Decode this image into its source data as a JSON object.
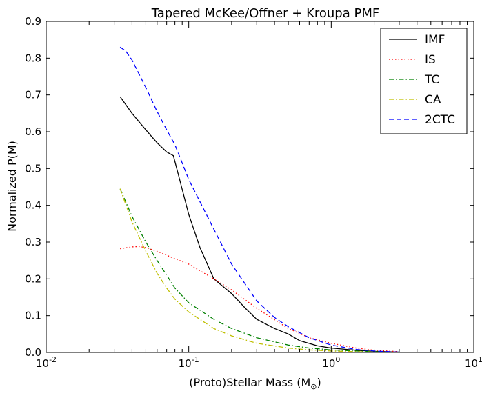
{
  "chart_data": {
    "type": "line",
    "title": "Tapered McKee/Offner + Kroupa PMF",
    "xlabel_main": "(Proto)Stellar Mass (M",
    "xlabel_sub": "⊙",
    "xlabel_close": ")",
    "ylabel": "Normalized P(M)",
    "xscale": "log",
    "xlim": [
      0.01,
      10
    ],
    "ylim": [
      0.0,
      0.9
    ],
    "xticks": [
      {
        "value": 0.01,
        "base": "10",
        "exp": "-2"
      },
      {
        "value": 0.1,
        "base": "10",
        "exp": "-1"
      },
      {
        "value": 1,
        "base": "10",
        "exp": "0"
      },
      {
        "value": 10,
        "base": "10",
        "exp": "1"
      }
    ],
    "yticks": [
      {
        "value": 0.0,
        "label": "0.0"
      },
      {
        "value": 0.1,
        "label": "0.1"
      },
      {
        "value": 0.2,
        "label": "0.2"
      },
      {
        "value": 0.3,
        "label": "0.3"
      },
      {
        "value": 0.4,
        "label": "0.4"
      },
      {
        "value": 0.5,
        "label": "0.5"
      },
      {
        "value": 0.6,
        "label": "0.6"
      },
      {
        "value": 0.7,
        "label": "0.7"
      },
      {
        "value": 0.8,
        "label": "0.8"
      },
      {
        "value": 0.9,
        "label": "0.9"
      }
    ],
    "grid": false,
    "legend_position": "top-right",
    "series": [
      {
        "name": "IMF",
        "color": "#000000",
        "dash": "solid",
        "x": [
          0.033,
          0.04,
          0.05,
          0.06,
          0.07,
          0.078,
          0.085,
          0.1,
          0.12,
          0.15,
          0.2,
          0.25,
          0.3,
          0.4,
          0.5,
          0.6,
          0.8,
          1.0,
          1.5,
          2.0,
          3.0
        ],
        "y": [
          0.695,
          0.65,
          0.605,
          0.57,
          0.545,
          0.535,
          0.48,
          0.375,
          0.285,
          0.2,
          0.16,
          0.12,
          0.09,
          0.065,
          0.05,
          0.032,
          0.018,
          0.012,
          0.006,
          0.003,
          0.001
        ]
      },
      {
        "name": "IS",
        "color": "#ff0000",
        "dash": "dotted",
        "x": [
          0.033,
          0.04,
          0.045,
          0.05,
          0.06,
          0.08,
          0.1,
          0.15,
          0.2,
          0.3,
          0.5,
          0.7,
          1.0,
          1.5,
          2.0,
          3.0
        ],
        "y": [
          0.282,
          0.287,
          0.288,
          0.285,
          0.275,
          0.255,
          0.24,
          0.2,
          0.17,
          0.12,
          0.065,
          0.04,
          0.025,
          0.012,
          0.006,
          0.002
        ]
      },
      {
        "name": "TC",
        "color": "#008000",
        "dash": "dashdot",
        "x": [
          0.033,
          0.04,
          0.05,
          0.06,
          0.07,
          0.08,
          0.1,
          0.15,
          0.2,
          0.3,
          0.5,
          0.7,
          1.0,
          1.5,
          2.0,
          3.0
        ],
        "y": [
          0.445,
          0.37,
          0.3,
          0.25,
          0.21,
          0.175,
          0.135,
          0.09,
          0.065,
          0.04,
          0.02,
          0.012,
          0.007,
          0.004,
          0.002,
          0.001
        ]
      },
      {
        "name": "CA",
        "color": "#bfbf00",
        "dash": "dashdot",
        "x": [
          0.033,
          0.04,
          0.05,
          0.06,
          0.07,
          0.08,
          0.1,
          0.15,
          0.2,
          0.3,
          0.5,
          0.7,
          1.0,
          1.5,
          2.0,
          3.0
        ],
        "y": [
          0.445,
          0.355,
          0.275,
          0.215,
          0.175,
          0.145,
          0.11,
          0.065,
          0.045,
          0.025,
          0.012,
          0.007,
          0.004,
          0.002,
          0.001,
          0.0005
        ]
      },
      {
        "name": "2CTC",
        "color": "#0000ff",
        "dash": "dashed",
        "x": [
          0.033,
          0.036,
          0.04,
          0.05,
          0.06,
          0.07,
          0.08,
          0.1,
          0.15,
          0.2,
          0.3,
          0.4,
          0.5,
          0.7,
          1.0,
          1.5,
          2.0,
          3.0
        ],
        "y": [
          0.83,
          0.82,
          0.795,
          0.72,
          0.655,
          0.605,
          0.565,
          0.47,
          0.335,
          0.24,
          0.14,
          0.095,
          0.07,
          0.04,
          0.02,
          0.008,
          0.004,
          0.001
        ]
      }
    ]
  }
}
